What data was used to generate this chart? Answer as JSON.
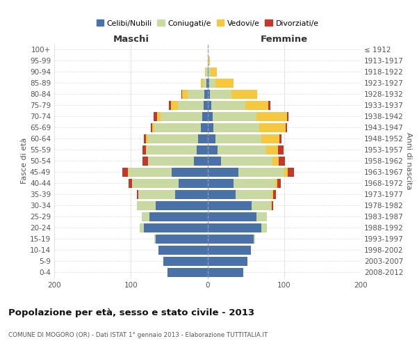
{
  "age_groups": [
    "0-4",
    "5-9",
    "10-14",
    "15-19",
    "20-24",
    "25-29",
    "30-34",
    "35-39",
    "40-44",
    "45-49",
    "50-54",
    "55-59",
    "60-64",
    "65-69",
    "70-74",
    "75-79",
    "80-84",
    "85-89",
    "90-94",
    "95-99",
    "100+"
  ],
  "birth_years": [
    "2008-2012",
    "2003-2007",
    "1998-2002",
    "1993-1997",
    "1988-1992",
    "1983-1987",
    "1978-1982",
    "1973-1977",
    "1968-1972",
    "1963-1967",
    "1958-1962",
    "1953-1957",
    "1948-1952",
    "1943-1947",
    "1938-1942",
    "1933-1937",
    "1928-1932",
    "1923-1927",
    "1918-1922",
    "1913-1917",
    "≤ 1912"
  ],
  "male_celibi": [
    52,
    58,
    64,
    68,
    83,
    76,
    68,
    42,
    38,
    47,
    18,
    14,
    12,
    9,
    7,
    5,
    4,
    1,
    0,
    0,
    0
  ],
  "male_coniugati": [
    0,
    0,
    0,
    1,
    5,
    10,
    24,
    48,
    60,
    56,
    60,
    65,
    66,
    60,
    54,
    34,
    22,
    5,
    2,
    0,
    0
  ],
  "male_vedovi": [
    0,
    0,
    0,
    0,
    0,
    0,
    0,
    0,
    0,
    1,
    0,
    1,
    2,
    3,
    5,
    9,
    7,
    3,
    1,
    0,
    0
  ],
  "male_divorziati": [
    0,
    0,
    0,
    0,
    0,
    0,
    0,
    2,
    5,
    7,
    7,
    5,
    3,
    2,
    4,
    2,
    1,
    0,
    0,
    0,
    0
  ],
  "fem_nubili": [
    47,
    52,
    57,
    60,
    70,
    64,
    58,
    37,
    34,
    40,
    18,
    13,
    10,
    8,
    7,
    5,
    3,
    2,
    1,
    0,
    0
  ],
  "fem_coniugate": [
    0,
    0,
    0,
    2,
    8,
    14,
    25,
    47,
    54,
    60,
    67,
    64,
    60,
    60,
    57,
    44,
    28,
    8,
    3,
    1,
    0
  ],
  "fem_vedove": [
    0,
    0,
    0,
    0,
    0,
    0,
    1,
    2,
    3,
    5,
    8,
    15,
    24,
    34,
    40,
    30,
    34,
    24,
    8,
    2,
    0
  ],
  "fem_divorziate": [
    0,
    0,
    0,
    0,
    0,
    0,
    2,
    3,
    5,
    8,
    8,
    7,
    3,
    2,
    2,
    3,
    0,
    0,
    0,
    0,
    0
  ],
  "color_celibi": "#4a72a8",
  "color_coniugati": "#c8d9a2",
  "color_vedovi": "#f5c840",
  "color_divorziati": "#c0392b",
  "title": "Popolazione per età, sesso e stato civile - 2013",
  "subtitle": "COMUNE DI MOGORO (OR) - Dati ISTAT 1° gennaio 2013 - Elaborazione TUTTITALIA.IT",
  "legend_labels": [
    "Celibi/Nubili",
    "Coniugati/e",
    "Vedovi/e",
    "Divorziati/e"
  ],
  "ylabel_left": "Fasce di età",
  "ylabel_right": "Anni di nascita",
  "maschi_label": "Maschi",
  "femmine_label": "Femmine"
}
